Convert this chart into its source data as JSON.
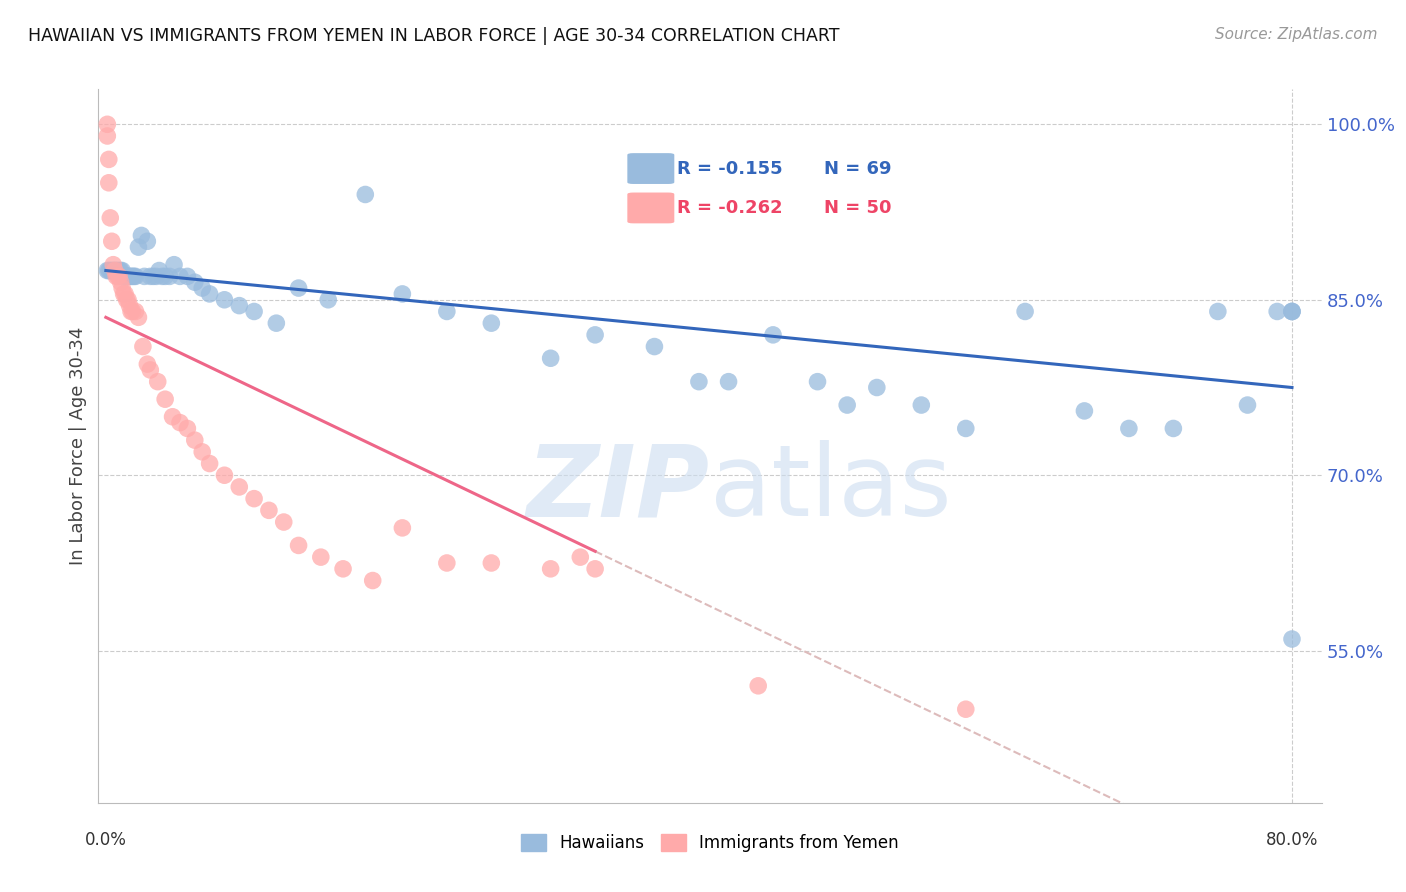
{
  "title": "HAWAIIAN VS IMMIGRANTS FROM YEMEN IN LABOR FORCE | AGE 30-34 CORRELATION CHART",
  "source": "Source: ZipAtlas.com",
  "ylabel": "In Labor Force | Age 30-34",
  "ytick_labels": [
    "100.0%",
    "85.0%",
    "70.0%",
    "55.0%"
  ],
  "ytick_values": [
    1.0,
    0.85,
    0.7,
    0.55
  ],
  "ylim": [
    0.42,
    1.03
  ],
  "xlim": [
    -0.005,
    0.82
  ],
  "watermark_top": "ZIP",
  "watermark_bot": "atlas",
  "legend_blue_r": "R = -0.155",
  "legend_blue_n": "N = 69",
  "legend_pink_r": "R = -0.262",
  "legend_pink_n": "N = 50",
  "legend_label_blue": "Hawaiians",
  "legend_label_pink": "Immigrants from Yemen",
  "blue_color": "#99BBDD",
  "pink_color": "#FFAAAA",
  "blue_line_color": "#3366BB",
  "pink_line_color": "#EE6688",
  "dashed_line_color": "#DDBBBB",
  "blue_trend_x0": 0.0,
  "blue_trend_y0": 0.875,
  "blue_trend_x1": 0.8,
  "blue_trend_y1": 0.775,
  "pink_trend_x0": 0.0,
  "pink_trend_y0": 0.835,
  "pink_trend_x1": 0.33,
  "pink_trend_y1": 0.635,
  "blue_scatter_x": [
    0.001,
    0.002,
    0.003,
    0.004,
    0.005,
    0.006,
    0.007,
    0.008,
    0.009,
    0.01,
    0.011,
    0.012,
    0.013,
    0.014,
    0.015,
    0.016,
    0.017,
    0.018,
    0.019,
    0.02,
    0.022,
    0.024,
    0.026,
    0.028,
    0.03,
    0.032,
    0.034,
    0.036,
    0.038,
    0.04,
    0.043,
    0.046,
    0.05,
    0.055,
    0.06,
    0.065,
    0.07,
    0.08,
    0.09,
    0.1,
    0.115,
    0.13,
    0.15,
    0.175,
    0.2,
    0.23,
    0.26,
    0.3,
    0.33,
    0.37,
    0.4,
    0.42,
    0.45,
    0.48,
    0.5,
    0.52,
    0.55,
    0.58,
    0.62,
    0.66,
    0.69,
    0.72,
    0.75,
    0.77,
    0.79,
    0.8,
    0.8,
    0.8,
    0.8
  ],
  "blue_scatter_y": [
    0.875,
    0.875,
    0.875,
    0.875,
    0.875,
    0.875,
    0.875,
    0.875,
    0.875,
    0.875,
    0.875,
    0.87,
    0.87,
    0.87,
    0.87,
    0.87,
    0.87,
    0.87,
    0.87,
    0.87,
    0.895,
    0.905,
    0.87,
    0.9,
    0.87,
    0.87,
    0.87,
    0.875,
    0.87,
    0.87,
    0.87,
    0.88,
    0.87,
    0.87,
    0.865,
    0.86,
    0.855,
    0.85,
    0.845,
    0.84,
    0.83,
    0.86,
    0.85,
    0.94,
    0.855,
    0.84,
    0.83,
    0.8,
    0.82,
    0.81,
    0.78,
    0.78,
    0.82,
    0.78,
    0.76,
    0.775,
    0.76,
    0.74,
    0.84,
    0.755,
    0.74,
    0.74,
    0.84,
    0.76,
    0.84,
    0.84,
    0.84,
    0.84,
    0.56
  ],
  "pink_scatter_x": [
    0.001,
    0.001,
    0.002,
    0.002,
    0.003,
    0.004,
    0.005,
    0.006,
    0.007,
    0.008,
    0.009,
    0.01,
    0.011,
    0.012,
    0.013,
    0.014,
    0.015,
    0.016,
    0.017,
    0.018,
    0.02,
    0.022,
    0.025,
    0.028,
    0.03,
    0.035,
    0.04,
    0.045,
    0.05,
    0.055,
    0.06,
    0.065,
    0.07,
    0.08,
    0.09,
    0.1,
    0.11,
    0.12,
    0.13,
    0.145,
    0.16,
    0.18,
    0.2,
    0.23,
    0.26,
    0.3,
    0.32,
    0.33,
    0.44,
    0.58
  ],
  "pink_scatter_y": [
    1.0,
    0.99,
    0.97,
    0.95,
    0.92,
    0.9,
    0.88,
    0.875,
    0.87,
    0.87,
    0.87,
    0.865,
    0.86,
    0.855,
    0.855,
    0.85,
    0.85,
    0.845,
    0.84,
    0.84,
    0.84,
    0.835,
    0.81,
    0.795,
    0.79,
    0.78,
    0.765,
    0.75,
    0.745,
    0.74,
    0.73,
    0.72,
    0.71,
    0.7,
    0.69,
    0.68,
    0.67,
    0.66,
    0.64,
    0.63,
    0.62,
    0.61,
    0.655,
    0.625,
    0.625,
    0.62,
    0.63,
    0.62,
    0.52,
    0.5
  ]
}
